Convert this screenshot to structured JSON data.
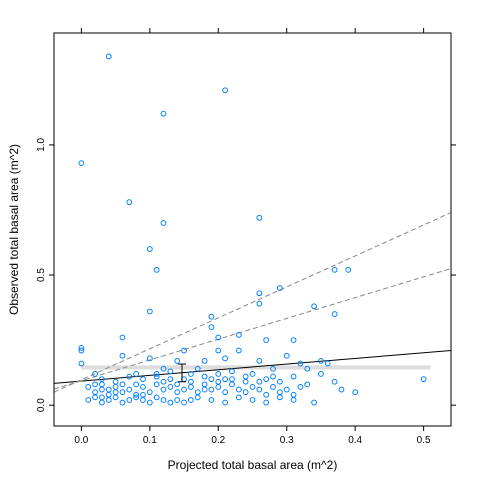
{
  "chart_data": {
    "type": "scatter",
    "xlabel": "Projected total basal area (m^2)",
    "ylabel": "Observed total basal area (m^2)",
    "xlim": [
      -0.04,
      0.54
    ],
    "ylim": [
      -0.08,
      1.43
    ],
    "x_ticks": [
      "0.0",
      "0.1",
      "0.2",
      "0.3",
      "0.4",
      "0.5"
    ],
    "x_tick_values": [
      0,
      0.1,
      0.2,
      0.3,
      0.4,
      0.5
    ],
    "y_ticks": [
      "0.0",
      "0.5",
      "1.0"
    ],
    "y_tick_values": [
      0,
      0.5,
      1.0
    ],
    "grid": false,
    "point_color": "#0080ff",
    "points": [
      [
        0.04,
        1.34
      ],
      [
        0.21,
        1.21
      ],
      [
        0.12,
        1.12
      ],
      [
        0.0,
        0.93
      ],
      [
        0.07,
        0.78
      ],
      [
        0.12,
        0.7
      ],
      [
        0.26,
        0.72
      ],
      [
        0.1,
        0.6
      ],
      [
        0.11,
        0.52
      ],
      [
        0.37,
        0.52
      ],
      [
        0.39,
        0.52
      ],
      [
        0.26,
        0.43
      ],
      [
        0.29,
        0.45
      ],
      [
        0.26,
        0.39
      ],
      [
        0.34,
        0.38
      ],
      [
        0.37,
        0.35
      ],
      [
        0.1,
        0.36
      ],
      [
        0.19,
        0.34
      ],
      [
        0.19,
        0.3
      ],
      [
        0.0,
        0.22
      ],
      [
        0.0,
        0.21
      ],
      [
        0.06,
        0.26
      ],
      [
        0.23,
        0.27
      ],
      [
        0.2,
        0.26
      ],
      [
        0.31,
        0.25
      ],
      [
        0.27,
        0.25
      ],
      [
        0.15,
        0.21
      ],
      [
        0.23,
        0.21
      ],
      [
        0.2,
        0.21
      ],
      [
        0.0,
        0.16
      ],
      [
        0.06,
        0.19
      ],
      [
        0.1,
        0.18
      ],
      [
        0.14,
        0.17
      ],
      [
        0.18,
        0.17
      ],
      [
        0.21,
        0.18
      ],
      [
        0.26,
        0.17
      ],
      [
        0.3,
        0.19
      ],
      [
        0.32,
        0.16
      ],
      [
        0.35,
        0.17
      ],
      [
        0.36,
        0.16
      ],
      [
        0.12,
        0.14
      ],
      [
        0.13,
        0.13
      ],
      [
        0.17,
        0.14
      ],
      [
        0.22,
        0.13
      ],
      [
        0.25,
        0.12
      ],
      [
        0.28,
        0.14
      ],
      [
        0.02,
        0.12
      ],
      [
        0.03,
        0.1
      ],
      [
        0.05,
        0.09
      ],
      [
        0.07,
        0.11
      ],
      [
        0.08,
        0.12
      ],
      [
        0.09,
        0.1
      ],
      [
        0.11,
        0.11
      ],
      [
        0.13,
        0.1
      ],
      [
        0.16,
        0.09
      ],
      [
        0.18,
        0.11
      ],
      [
        0.19,
        0.1
      ],
      [
        0.21,
        0.1
      ],
      [
        0.24,
        0.09
      ],
      [
        0.27,
        0.1
      ],
      [
        0.29,
        0.09
      ],
      [
        0.31,
        0.11
      ],
      [
        0.33,
        0.08
      ],
      [
        0.35,
        0.12
      ],
      [
        0.37,
        0.09
      ],
      [
        0.5,
        0.1
      ],
      [
        0.38,
        0.06
      ],
      [
        0.4,
        0.05
      ],
      [
        0.01,
        0.07
      ],
      [
        0.02,
        0.05
      ],
      [
        0.03,
        0.06
      ],
      [
        0.04,
        0.04
      ],
      [
        0.05,
        0.07
      ],
      [
        0.06,
        0.05
      ],
      [
        0.07,
        0.06
      ],
      [
        0.08,
        0.04
      ],
      [
        0.09,
        0.07
      ],
      [
        0.1,
        0.05
      ],
      [
        0.11,
        0.08
      ],
      [
        0.12,
        0.06
      ],
      [
        0.13,
        0.07
      ],
      [
        0.14,
        0.05
      ],
      [
        0.15,
        0.06
      ],
      [
        0.16,
        0.07
      ],
      [
        0.17,
        0.05
      ],
      [
        0.18,
        0.08
      ],
      [
        0.19,
        0.06
      ],
      [
        0.2,
        0.07
      ],
      [
        0.21,
        0.05
      ],
      [
        0.22,
        0.08
      ],
      [
        0.23,
        0.06
      ],
      [
        0.24,
        0.05
      ],
      [
        0.25,
        0.07
      ],
      [
        0.26,
        0.06
      ],
      [
        0.27,
        0.04
      ],
      [
        0.28,
        0.07
      ],
      [
        0.29,
        0.05
      ],
      [
        0.3,
        0.06
      ],
      [
        0.31,
        0.04
      ],
      [
        0.32,
        0.07
      ],
      [
        0.01,
        0.02
      ],
      [
        0.02,
        0.03
      ],
      [
        0.03,
        0.01
      ],
      [
        0.04,
        0.02
      ],
      [
        0.05,
        0.03
      ],
      [
        0.06,
        0.01
      ],
      [
        0.07,
        0.02
      ],
      [
        0.08,
        0.03
      ],
      [
        0.09,
        0.02
      ],
      [
        0.1,
        0.01
      ],
      [
        0.11,
        0.03
      ],
      [
        0.12,
        0.02
      ],
      [
        0.13,
        0.01
      ],
      [
        0.14,
        0.02
      ],
      [
        0.15,
        0.01
      ],
      [
        0.16,
        0.02
      ],
      [
        0.17,
        0.03
      ],
      [
        0.19,
        0.02
      ],
      [
        0.21,
        0.01
      ],
      [
        0.23,
        0.03
      ],
      [
        0.25,
        0.02
      ],
      [
        0.27,
        0.01
      ],
      [
        0.29,
        0.03
      ],
      [
        0.31,
        0.02
      ],
      [
        0.34,
        0.01
      ],
      [
        0.02,
        0.08
      ],
      [
        0.03,
        0.03
      ],
      [
        0.05,
        0.05
      ],
      [
        0.08,
        0.08
      ],
      [
        0.12,
        0.09
      ],
      [
        0.15,
        0.1
      ],
      [
        0.2,
        0.12
      ],
      [
        0.22,
        0.1
      ],
      [
        0.24,
        0.11
      ],
      [
        0.26,
        0.09
      ],
      [
        0.33,
        0.14
      ],
      [
        0.28,
        0.11
      ],
      [
        0.03,
        0.08
      ],
      [
        0.04,
        0.06
      ],
      [
        0.06,
        0.08
      ],
      [
        0.09,
        0.04
      ],
      [
        0.11,
        0.12
      ],
      [
        0.14,
        0.08
      ],
      [
        0.16,
        0.12
      ],
      [
        0.18,
        0.06
      ],
      [
        0.2,
        0.09
      ]
    ],
    "lines": [
      {
        "style": "solid",
        "color": "#000000",
        "from": [
          -0.04,
          0.084
        ],
        "to": [
          0.54,
          0.21
        ]
      },
      {
        "style": "dashed",
        "color": "#888888",
        "from": [
          -0.04,
          0.05
        ],
        "to": [
          0.54,
          0.74
        ]
      },
      {
        "style": "dashed",
        "color": "#888888",
        "from": [
          -0.04,
          0.062
        ],
        "to": [
          0.54,
          0.525
        ]
      }
    ],
    "band": {
      "color": "#dddddd",
      "x_from": 0.0,
      "x_to": 0.51,
      "y": 0.145,
      "thickness": 0.016
    },
    "errorbar": {
      "x": 0.147,
      "y_low": 0.09,
      "y_high": 0.158
    }
  }
}
